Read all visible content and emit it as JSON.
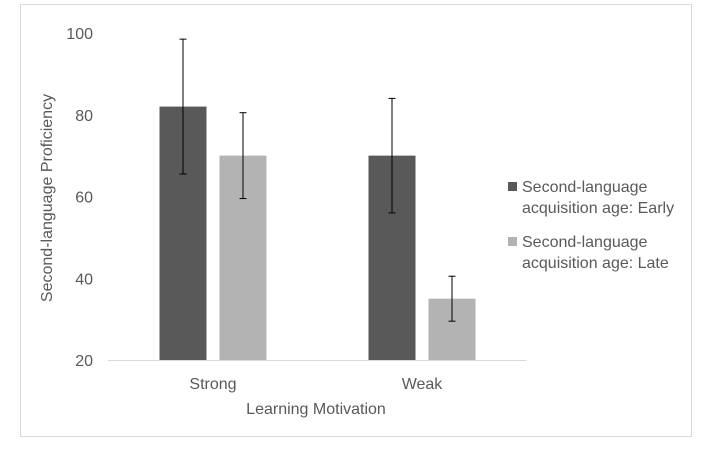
{
  "chart_data": {
    "type": "bar",
    "title": "",
    "xlabel": "Learning Motivation",
    "ylabel": "Second-language Proficiency",
    "categories": [
      "Strong",
      "Weak"
    ],
    "ylim": [
      20,
      100
    ],
    "yticks": [
      "20",
      "40",
      "60",
      "80",
      "100"
    ],
    "grid": false,
    "legend_position": "right",
    "series": [
      {
        "name": "Second-language acquisition age: Early",
        "name_lines": [
          "Second-language",
          "acquisition age: Early"
        ],
        "values": [
          82,
          70
        ],
        "error_plus": [
          16.5,
          14
        ],
        "error_minus": [
          16.5,
          14
        ],
        "color": "#595959"
      },
      {
        "name": "Second-language acquisition age: Late",
        "name_lines": [
          "Second-language",
          "acquisition age: Late"
        ],
        "values": [
          70,
          35
        ],
        "error_plus": [
          10.5,
          5.5
        ],
        "error_minus": [
          10.5,
          5.5
        ],
        "color": "#b3b3b3"
      }
    ],
    "colors": {
      "axis": "#d9d9d9",
      "text": "#595959",
      "error_bar": "#000000",
      "frame": "#d9d9d9"
    }
  }
}
